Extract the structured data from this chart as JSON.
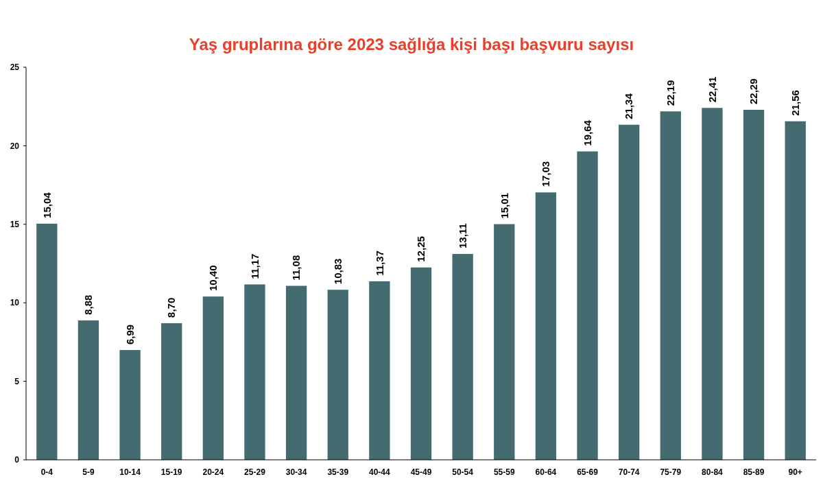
{
  "chart_data": {
    "type": "bar",
    "title": "Yaş gruplarına göre 2023 sağlığa kişi başı başvuru sayısı",
    "categories": [
      "0-4",
      "5-9",
      "10-14",
      "15-19",
      "20-24",
      "25-29",
      "30-34",
      "35-39",
      "40-44",
      "45-49",
      "50-54",
      "55-59",
      "60-64",
      "65-69",
      "70-74",
      "75-79",
      "80-84",
      "85-89",
      "90+"
    ],
    "values": [
      15.04,
      8.88,
      6.99,
      8.7,
      10.4,
      11.17,
      11.08,
      10.83,
      11.37,
      12.25,
      13.11,
      15.01,
      17.03,
      19.64,
      21.34,
      22.19,
      22.41,
      22.29,
      21.56
    ],
    "value_labels": [
      "15,04",
      "8,88",
      "6,99",
      "8,70",
      "10,40",
      "11,17",
      "11,08",
      "10,83",
      "11,37",
      "12,25",
      "13,11",
      "15,01",
      "17,03",
      "19,64",
      "21,34",
      "22,19",
      "22,41",
      "22,29",
      "21,56"
    ],
    "color": "#446b70",
    "ylim": [
      0,
      25
    ],
    "yticks": [
      0,
      5,
      10,
      15,
      20,
      25
    ],
    "grid": false
  }
}
